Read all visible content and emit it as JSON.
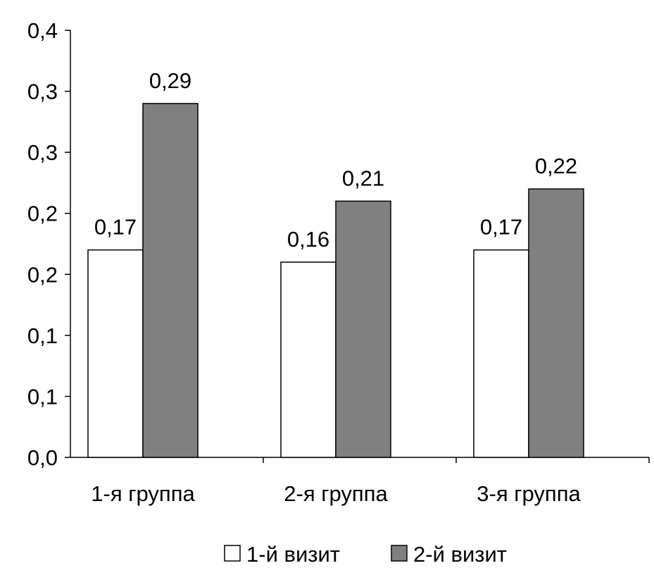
{
  "chart_data": {
    "type": "bar",
    "title": "",
    "xlabel": "",
    "ylabel": "",
    "categories": [
      "1-я группа",
      "2-я группа",
      "3-я группа"
    ],
    "series": [
      {
        "name": "1-й визит",
        "values": [
          0.17,
          0.16,
          0.17
        ],
        "labels": [
          "0,17",
          "0,16",
          "0,17"
        ],
        "color": "#ffffff"
      },
      {
        "name": "2-й визит",
        "values": [
          0.29,
          0.21,
          0.22
        ],
        "labels": [
          "0,29",
          "0,21",
          "0,22"
        ],
        "color": "#808080"
      }
    ],
    "ylim": [
      0,
      0.35
    ],
    "yticks": [
      0,
      0.05,
      0.1,
      0.15,
      0.2,
      0.25,
      0.3,
      0.35
    ],
    "ytick_labels": [
      "0,0",
      "0,1",
      "0,1",
      "0,2",
      "0,2",
      "0,3",
      "0,3",
      "0,4"
    ],
    "grid": false,
    "legend": "bottom"
  }
}
